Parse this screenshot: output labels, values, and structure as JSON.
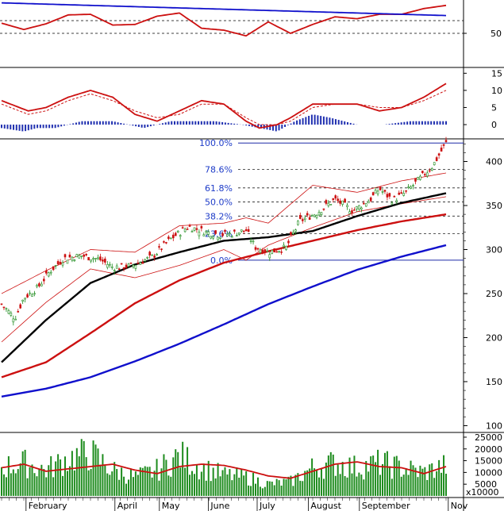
{
  "chart_data": [
    {
      "type": "line",
      "panel": "rsi",
      "y_ticks": [
        "50"
      ],
      "y_range": [
        0,
        100
      ],
      "reference_lines": [
        70,
        50
      ],
      "series": [
        {
          "color": "#cc1010",
          "x": [
            0,
            5,
            10,
            15,
            20,
            25,
            30,
            35,
            40,
            45,
            50,
            55,
            60,
            65,
            70,
            75,
            80,
            85,
            90,
            95,
            100
          ],
          "values": [
            66,
            56,
            65,
            79,
            80,
            63,
            64,
            77,
            82,
            58,
            55,
            46,
            68,
            50,
            64,
            76,
            73,
            80,
            80,
            89,
            94
          ]
        },
        {
          "color": "#1010cc",
          "x": [
            0,
            100
          ],
          "values": [
            98,
            78
          ]
        }
      ]
    },
    {
      "type": "line",
      "panel": "macd",
      "y_ticks": [
        "15",
        "10",
        "5",
        "0"
      ],
      "y_range": [
        -3,
        16
      ],
      "series": [
        {
          "color": "#cc1010",
          "x": [
            0,
            6,
            10,
            15,
            20,
            25,
            30,
            35,
            40,
            45,
            50,
            55,
            58,
            62,
            65,
            70,
            75,
            80,
            85,
            90,
            95,
            100
          ],
          "values": [
            7,
            4,
            5,
            8,
            10,
            8,
            3,
            1,
            4,
            7,
            6,
            1,
            -1,
            0,
            2,
            6,
            6,
            6,
            4,
            5,
            8,
            12
          ]
        },
        {
          "color": "#cc1010",
          "dashed": true,
          "x": [
            0,
            6,
            10,
            15,
            20,
            25,
            30,
            35,
            40,
            45,
            50,
            55,
            58,
            62,
            65,
            70,
            75,
            80,
            85,
            90,
            95,
            100
          ],
          "values": [
            6,
            3,
            4,
            7,
            9,
            7,
            4,
            2,
            3,
            6,
            6,
            2,
            0,
            0,
            1,
            5,
            6,
            6,
            5,
            5,
            7,
            10
          ]
        },
        {
          "type": "bar",
          "color": "#2030b0",
          "x": [
            0,
            5,
            8,
            12,
            18,
            25,
            32,
            38,
            42,
            48,
            54,
            58,
            62,
            66,
            70,
            74,
            80,
            86,
            92,
            98,
            100
          ],
          "values": [
            -1,
            -2,
            -1,
            -1,
            1,
            1,
            -1,
            1,
            1,
            1,
            0,
            -1,
            -2,
            1,
            3,
            2,
            0,
            0,
            1,
            1,
            1
          ]
        }
      ]
    },
    {
      "type": "candlestick",
      "panel": "price",
      "y_ticks": [
        "400",
        "350",
        "300",
        "250",
        "200",
        "150",
        "100"
      ],
      "y_range": [
        95,
        423
      ],
      "fibonacci_levels": [
        {
          "label": "100.0%",
          "value": 421
        },
        {
          "label": "78.6%",
          "value": 391
        },
        {
          "label": "61.8%",
          "value": 370
        },
        {
          "label": "50.0%",
          "value": 354
        },
        {
          "label": "38.2%",
          "value": 338
        },
        {
          "label": "23.6%",
          "value": 318
        },
        {
          "label": "0.0%",
          "value": 288
        }
      ],
      "close_anchors_x": [
        0,
        3,
        5,
        8,
        11,
        14,
        18,
        22,
        25,
        29,
        34,
        38,
        42,
        46,
        49,
        52,
        55,
        57,
        60,
        64,
        67,
        71,
        75,
        79,
        83,
        85,
        88,
        91,
        94,
        97,
        100
      ],
      "close_anchors_y": [
        238,
        222,
        245,
        256,
        276,
        290,
        293,
        289,
        280,
        281,
        292,
        312,
        326,
        320,
        317,
        318,
        322,
        303,
        297,
        302,
        332,
        342,
        357,
        344,
        357,
        369,
        356,
        365,
        380,
        395,
        421
      ],
      "moving_averages": [
        {
          "color": "#000000",
          "x": [
            0,
            10,
            20,
            30,
            40,
            50,
            60,
            70,
            80,
            90,
            100
          ],
          "values": [
            172,
            220,
            262,
            283,
            297,
            310,
            314,
            321,
            338,
            353,
            364
          ]
        },
        {
          "color": "#cc1010",
          "x": [
            0,
            10,
            20,
            30,
            40,
            50,
            60,
            70,
            80,
            90,
            100
          ],
          "values": [
            155,
            172,
            205,
            239,
            265,
            285,
            298,
            310,
            322,
            332,
            340
          ]
        },
        {
          "color": "#1010cc",
          "x": [
            0,
            10,
            20,
            30,
            40,
            50,
            60,
            70,
            80,
            90,
            100
          ],
          "values": [
            133,
            142,
            155,
            173,
            193,
            215,
            238,
            258,
            277,
            292,
            305
          ]
        }
      ],
      "bollinger_upper": {
        "x": [
          0,
          10,
          20,
          30,
          40,
          50,
          55,
          60,
          70,
          80,
          90,
          100
        ],
        "values": [
          250,
          276,
          300,
          297,
          327,
          330,
          336,
          330,
          373,
          365,
          378,
          387
        ]
      },
      "bollinger_lower": {
        "x": [
          0,
          10,
          20,
          30,
          40,
          50,
          55,
          60,
          70,
          80,
          90,
          100
        ],
        "values": [
          195,
          240,
          278,
          268,
          282,
          300,
          288,
          305,
          325,
          343,
          352,
          360
        ]
      }
    },
    {
      "type": "bar",
      "panel": "volume",
      "y_ticks": [
        "25000",
        "20000",
        "15000",
        "10000",
        "5000"
      ],
      "y_unit": "x10000",
      "y_range": [
        0,
        26000
      ],
      "bar_color": "#1e8c1e",
      "bar_count": 190,
      "volume_anchors_x": [
        0,
        5,
        10,
        15,
        20,
        25,
        30,
        35,
        40,
        45,
        50,
        55,
        60,
        65,
        70,
        75,
        80,
        85,
        90,
        95,
        100
      ],
      "volume_anchors_y": [
        12000,
        14000,
        11000,
        16000,
        18000,
        11000,
        8000,
        11000,
        17000,
        12000,
        9000,
        8000,
        5000,
        6000,
        12000,
        14000,
        12000,
        14000,
        12000,
        10000,
        13000
      ],
      "average": {
        "color": "#cc1010",
        "x": [
          0,
          5,
          10,
          15,
          20,
          25,
          30,
          35,
          40,
          45,
          50,
          55,
          60,
          65,
          70,
          75,
          80,
          85,
          90,
          95,
          100
        ],
        "values": [
          12000,
          13500,
          10500,
          11500,
          12500,
          13500,
          11000,
          9500,
          12500,
          13500,
          13000,
          11000,
          8500,
          7500,
          10500,
          13500,
          14500,
          12500,
          12000,
          9500,
          12500
        ]
      }
    },
    {
      "type": "x-axis",
      "months": [
        {
          "label": "February",
          "x": 5.5
        },
        {
          "label": "April",
          "x": 25.5
        },
        {
          "label": "May",
          "x": 35.5
        },
        {
          "label": "June",
          "x": 46.5
        },
        {
          "label": "July",
          "x": 57.5
        },
        {
          "label": "August",
          "x": 69
        },
        {
          "label": "September",
          "x": 80.5
        },
        {
          "label": "Nov",
          "x": 100.5
        }
      ]
    }
  ]
}
